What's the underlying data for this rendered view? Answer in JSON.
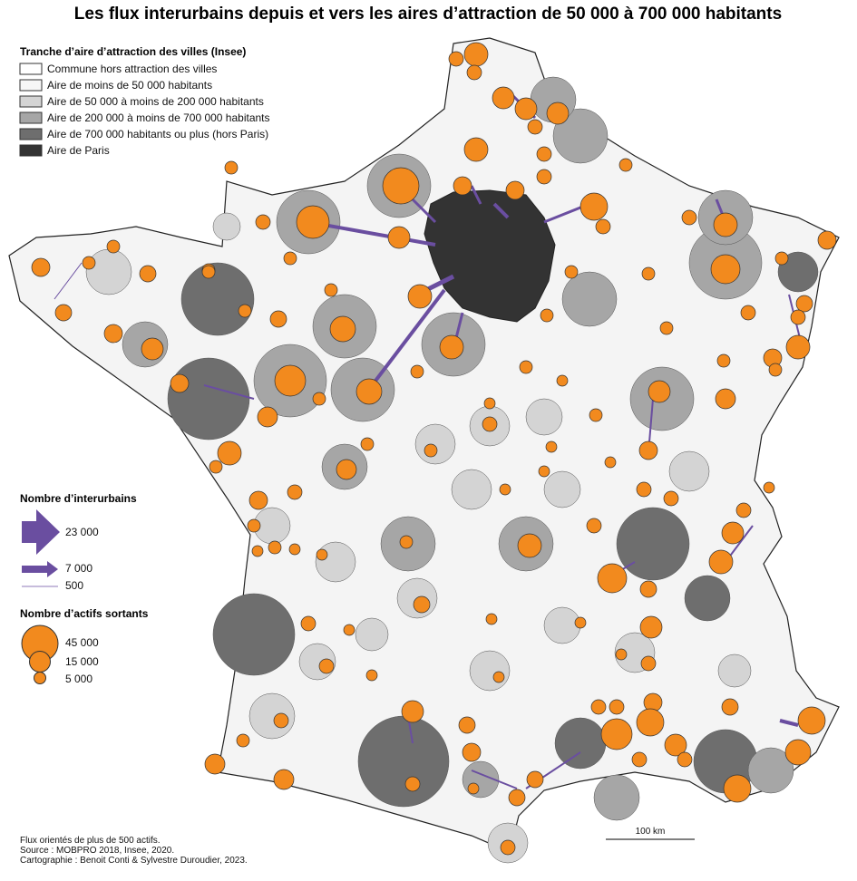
{
  "title": "Les flux interurbains depuis et vers les aires d’attraction de 50 000 à 700 000 habitants",
  "legend_zones": {
    "title": "Tranche d’aire d’attraction des villes (Insee)",
    "items": [
      "Commune hors attraction des villes",
      "Aire de moins de 50 000 habitants",
      "Aire de 50 000 à moins de 200 000 habitants",
      "Aire de 200 000 à moins de 700 000 habitants",
      "Aire de 700 000 habitants ou plus (hors Paris)",
      "Aire de Paris"
    ]
  },
  "legend_flows": {
    "title": "Nombre d’interurbains",
    "items": [
      "23 000",
      "7 000",
      "500"
    ]
  },
  "legend_circles": {
    "title": "Nombre d’actifs sortants",
    "items": [
      "45 000",
      "15 000",
      "5 000"
    ]
  },
  "notes": [
    "Flux orientés de plus de 500 actifs.",
    "Source : MOBPRO 2018, Insee, 2020.",
    "Cartographie : Benoit Conti & Sylvestre Duroudier, 2023."
  ],
  "scale": "100 km"
}
